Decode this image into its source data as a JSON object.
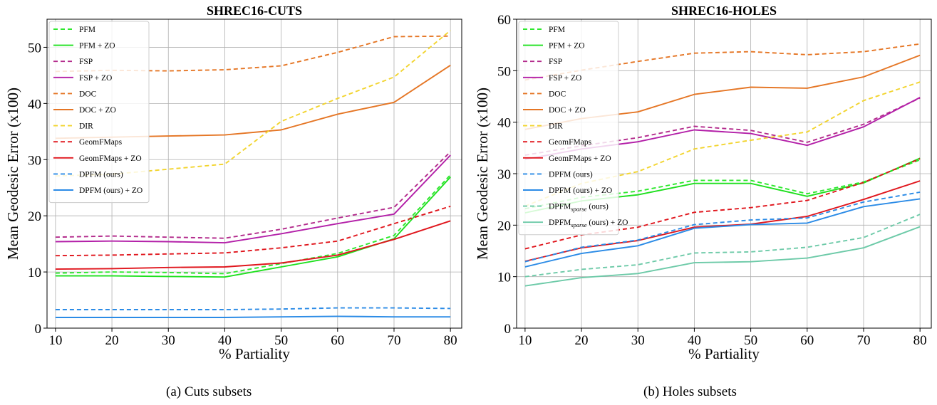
{
  "captions": [
    "(a) Cuts subsets",
    "(b) Holes subsets"
  ],
  "chart_data": [
    {
      "type": "line",
      "title": "SHREC16-CUTS",
      "xlabel": "% Partiality",
      "ylabel": "Mean Geodesic Error (x100)",
      "x": [
        10,
        20,
        30,
        40,
        50,
        60,
        70,
        80
      ],
      "xticks": [
        "10",
        "20",
        "30",
        "40",
        "50",
        "60",
        "70",
        "80"
      ],
      "xlim": [
        8.5,
        82
      ],
      "ylim": [
        0,
        55
      ],
      "yticks": [
        "0",
        "10",
        "20",
        "30",
        "40",
        "50"
      ],
      "grid": true,
      "legend_position": "top-left",
      "series": [
        {
          "name": "PFM",
          "color": "#2ee82e",
          "dashed": true,
          "values": [
            9.8,
            10.0,
            9.9,
            9.7,
            11.5,
            13.3,
            16.5,
            27.3
          ]
        },
        {
          "name": "PFM + ZO",
          "color": "#1ee01e",
          "dashed": false,
          "values": [
            9.3,
            9.3,
            9.2,
            9.1,
            10.9,
            12.7,
            15.9,
            26.9
          ]
        },
        {
          "name": "FSP",
          "color": "#b32b8c",
          "dashed": true,
          "values": [
            16.2,
            16.4,
            16.2,
            16.0,
            17.6,
            19.6,
            21.5,
            31.4
          ]
        },
        {
          "name": "FSP + ZO",
          "color": "#b31fa8",
          "dashed": false,
          "values": [
            15.4,
            15.5,
            15.4,
            15.2,
            16.8,
            18.6,
            20.3,
            30.8
          ]
        },
        {
          "name": "DOC",
          "color": "#e57625",
          "dashed": true,
          "values": [
            45.7,
            45.9,
            45.8,
            46.0,
            46.7,
            49.1,
            51.9,
            52.0
          ]
        },
        {
          "name": "DOC + ZO",
          "color": "#e57625",
          "dashed": false,
          "values": [
            33.8,
            34.0,
            34.2,
            34.4,
            35.3,
            38.1,
            40.2,
            46.8
          ]
        },
        {
          "name": "DIR",
          "color": "#f2d42e",
          "dashed": true,
          "values": [
            27.1,
            27.4,
            28.3,
            29.2,
            36.8,
            40.9,
            44.7,
            53.0
          ]
        },
        {
          "name": "GeomFMaps",
          "color": "#e0161d",
          "dashed": true,
          "values": [
            12.9,
            13.0,
            13.2,
            13.4,
            14.3,
            15.5,
            18.6,
            21.7
          ]
        },
        {
          "name": "GeomFMaps + ZO",
          "color": "#e0161d",
          "dashed": false,
          "values": [
            10.5,
            10.6,
            10.8,
            10.9,
            11.6,
            13.0,
            15.8,
            19.1
          ]
        },
        {
          "name": "DPFM (ours)",
          "color": "#2b8be6",
          "dashed": true,
          "values": [
            3.3,
            3.3,
            3.3,
            3.3,
            3.4,
            3.6,
            3.6,
            3.5
          ]
        },
        {
          "name": "DPFM (ours) + ZO",
          "color": "#2b8be6",
          "dashed": false,
          "values": [
            1.9,
            1.9,
            1.9,
            1.9,
            2.0,
            2.1,
            2.0,
            2.0
          ]
        }
      ]
    },
    {
      "type": "line",
      "title": "SHREC16-HOLES",
      "xlabel": "% Partiality",
      "ylabel": "Mean Geodesic Error (x100)",
      "x": [
        10,
        20,
        30,
        40,
        50,
        60,
        70,
        80
      ],
      "xticks": [
        "10",
        "20",
        "30",
        "40",
        "50",
        "60",
        "70",
        "80"
      ],
      "xlim": [
        8.5,
        82
      ],
      "ylim": [
        0,
        60
      ],
      "yticks": [
        "0",
        "10",
        "20",
        "30",
        "40",
        "50",
        "60"
      ],
      "grid": true,
      "legend_position": "top-left",
      "series": [
        {
          "name": "PFM",
          "color": "#2ee82e",
          "dashed": true,
          "values": [
            23.2,
            25.4,
            26.6,
            28.7,
            28.7,
            26.1,
            28.4,
            32.7
          ]
        },
        {
          "name": "PFM + ZO",
          "color": "#1ee01e",
          "dashed": false,
          "values": [
            22.4,
            24.7,
            25.9,
            28.1,
            28.1,
            25.6,
            28.2,
            33.0
          ]
        },
        {
          "name": "FSP",
          "color": "#b32b8c",
          "dashed": true,
          "values": [
            33.6,
            35.4,
            37.0,
            39.2,
            38.4,
            36.1,
            39.6,
            44.7
          ]
        },
        {
          "name": "FSP + ZO",
          "color": "#b31fa8",
          "dashed": false,
          "values": [
            32.8,
            34.8,
            36.2,
            38.5,
            37.8,
            35.5,
            39.1,
            44.8
          ]
        },
        {
          "name": "DOC",
          "color": "#e57625",
          "dashed": true,
          "values": [
            48.2,
            50.1,
            51.8,
            53.4,
            53.7,
            53.1,
            53.7,
            55.2
          ]
        },
        {
          "name": "DOC + ZO",
          "color": "#e57625",
          "dashed": false,
          "values": [
            38.6,
            40.7,
            42.0,
            45.4,
            46.8,
            46.6,
            48.8,
            53.0
          ]
        },
        {
          "name": "DIR",
          "color": "#f2d42e",
          "dashed": true,
          "values": [
            23.7,
            28.1,
            30.4,
            34.8,
            36.5,
            38.1,
            44.2,
            47.8
          ]
        },
        {
          "name": "GeomFMaps",
          "color": "#e0161d",
          "dashed": true,
          "values": [
            15.4,
            18.1,
            19.6,
            22.5,
            23.4,
            24.8,
            28.3,
            32.9
          ]
        },
        {
          "name": "GeomFMaps + ZO",
          "color": "#e0161d",
          "dashed": false,
          "values": [
            13.0,
            15.6,
            17.0,
            19.6,
            20.2,
            21.7,
            25.0,
            28.6
          ]
        },
        {
          "name": "DPFM (ours)",
          "color": "#2b8be6",
          "dashed": true,
          "values": [
            12.9,
            15.7,
            17.1,
            20.1,
            21.0,
            21.4,
            24.5,
            26.4
          ]
        },
        {
          "name": "DPFM (ours) + ZO",
          "color": "#2b8be6",
          "dashed": false,
          "values": [
            11.9,
            14.5,
            16.0,
            19.4,
            20.1,
            20.4,
            23.6,
            25.1
          ]
        },
        {
          "name": "DPFMsparse (ours)",
          "legend_main": "DPFM",
          "legend_sub": "sparse",
          "legend_suffix": " (ours)",
          "color": "#6dcaa8",
          "dashed": true,
          "values": [
            10.0,
            11.4,
            12.3,
            14.6,
            14.8,
            15.7,
            17.6,
            22.1
          ]
        },
        {
          "name": "DPFMsparse (ours) + ZO",
          "legend_main": "DPFM",
          "legend_sub": "sparse",
          "legend_suffix": " (ours) + ZO",
          "color": "#6dcaa8",
          "dashed": false,
          "values": [
            8.2,
            9.8,
            10.6,
            12.7,
            12.9,
            13.6,
            15.6,
            19.7
          ]
        }
      ]
    }
  ]
}
